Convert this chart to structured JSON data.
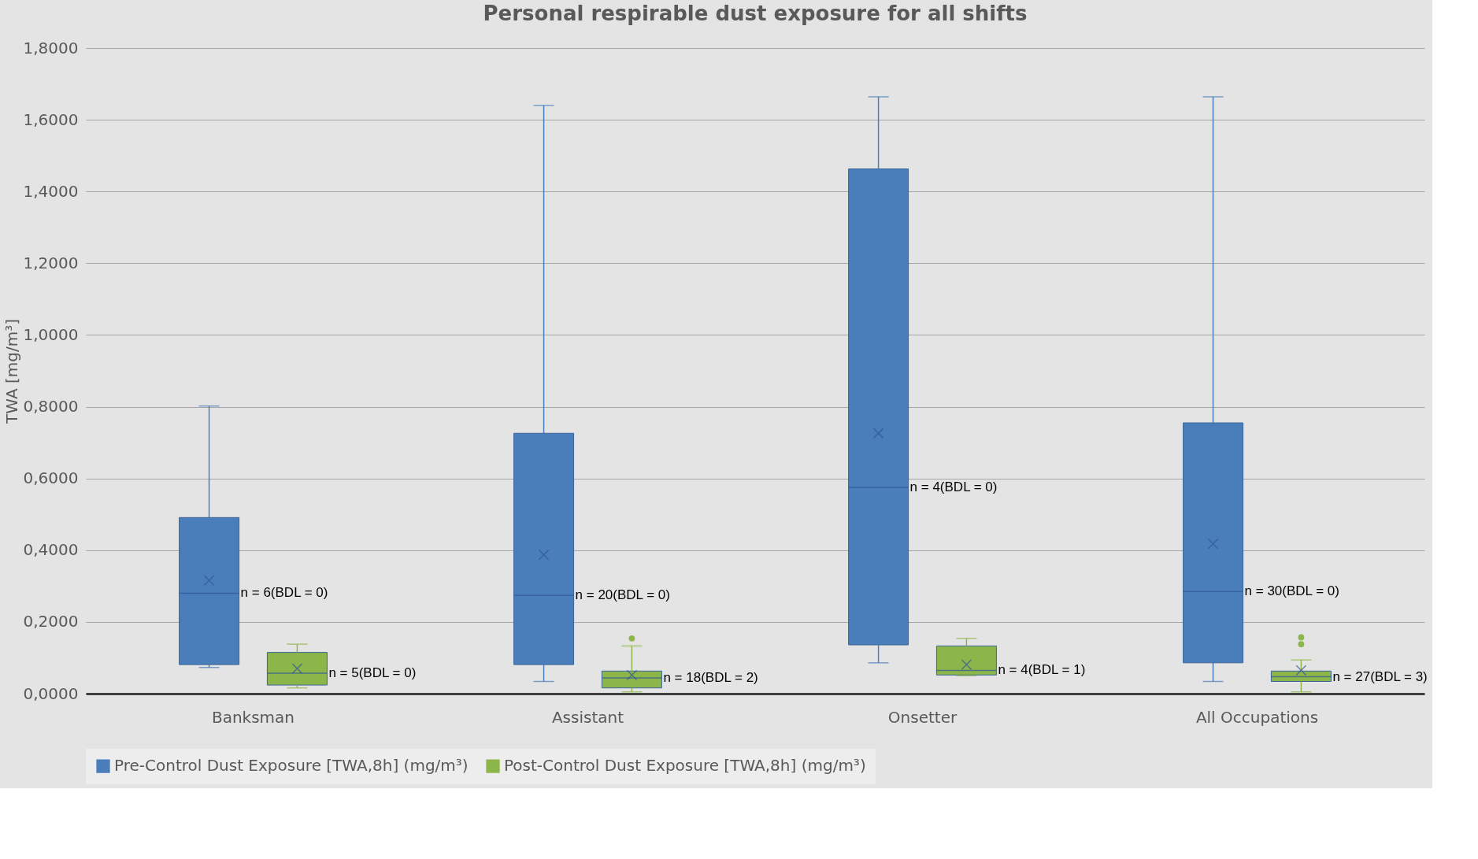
{
  "chart_data": {
    "type": "box",
    "title": "Personal respirable dust exposure for all shifts",
    "ylabel": "TWA [mg/m³]",
    "categories": [
      "Banksman",
      "Assistant",
      "Onsetter",
      "All Occupations"
    ],
    "series": [
      {
        "name": "Pre-Control Dust Exposure [TWA,8h] (mg/m³)",
        "color": "#4a7ebb",
        "boxes": [
          {
            "low": 0.073,
            "q1": 0.081,
            "median": 0.28,
            "q3": 0.491,
            "high": 0.802,
            "mean": 0.316
          },
          {
            "low": 0.034,
            "q1": 0.081,
            "median": 0.274,
            "q3": 0.726,
            "high": 1.64,
            "mean": 0.387
          },
          {
            "low": 0.086,
            "q1": 0.136,
            "median": 0.575,
            "q3": 1.463,
            "high": 1.664,
            "mean": 0.726
          },
          {
            "low": 0.034,
            "q1": 0.086,
            "median": 0.285,
            "q3": 0.755,
            "high": 1.664,
            "mean": 0.418
          }
        ]
      },
      {
        "name": "Post-Control Dust Exposure [TWA,8h] (mg/m³)",
        "color": "#8db64a",
        "boxes": [
          {
            "low": 0.016,
            "q1": 0.024,
            "median": 0.057,
            "q3": 0.115,
            "high": 0.138,
            "mean": 0.07
          },
          {
            "low": 0.005,
            "q1": 0.016,
            "median": 0.044,
            "q3": 0.063,
            "high": 0.133,
            "mean": 0.052,
            "outliers": [
              0.154
            ]
          },
          {
            "low": 0.05,
            "q1": 0.052,
            "median": 0.065,
            "q3": 0.133,
            "high": 0.154,
            "mean": 0.081
          },
          {
            "low": 0.005,
            "q1": 0.034,
            "median": 0.047,
            "q3": 0.063,
            "high": 0.094,
            "mean": 0.065,
            "outliers": [
              0.138,
              0.157
            ]
          }
        ]
      }
    ],
    "ylim": [
      0,
      1.8
    ],
    "yticks": [
      {
        "value": 0,
        "label": "0,0000"
      },
      {
        "value": 0.2,
        "label": "0,2000"
      },
      {
        "value": 0.4,
        "label": "0,4000"
      },
      {
        "value": 0.6,
        "label": "0,6000"
      },
      {
        "value": 0.8,
        "label": "0,8000"
      },
      {
        "value": 1.0,
        "label": "1,0000"
      },
      {
        "value": 1.2,
        "label": "1,2000"
      },
      {
        "value": 1.4,
        "label": "1,4000"
      },
      {
        "value": 1.6,
        "label": "1,6000"
      },
      {
        "value": 1.8,
        "label": "1,8000"
      }
    ],
    "grid": "y",
    "legend": "bottom",
    "annotations": [
      "n = 6(BDL = 0)",
      "n = 5(BDL = 0)",
      "n = 20(BDL = 0)",
      "n = 18(BDL = 2)",
      "n = 4(BDL = 0)",
      "n = 4(BDL = 1)",
      "n = 30(BDL = 0)",
      "n = 27(BDL = 3)"
    ]
  }
}
